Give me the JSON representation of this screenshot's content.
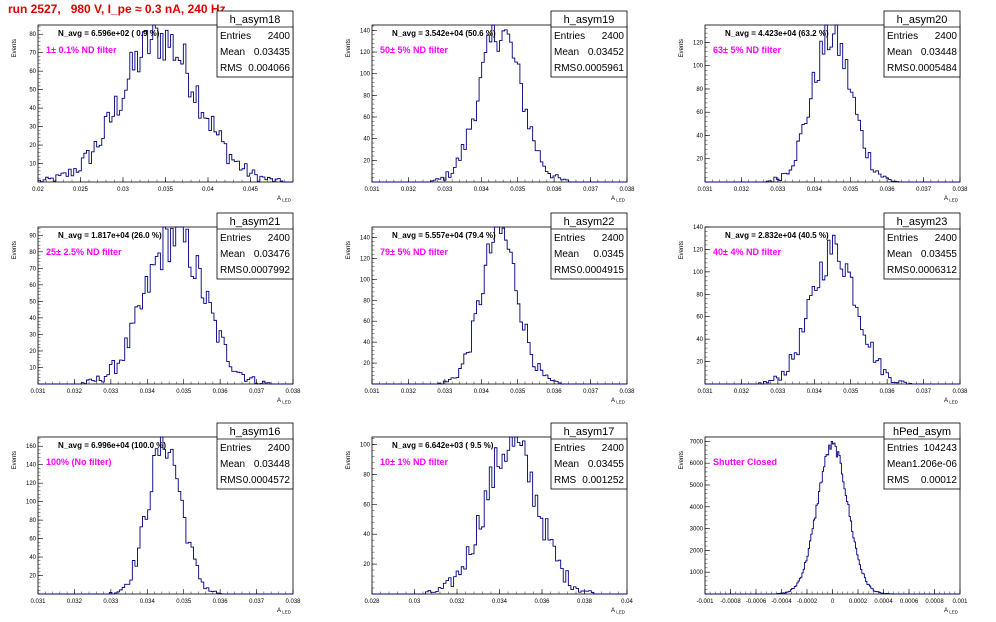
{
  "page_title": "run 2527,   980 V, I_pe ≈ 0.3 nA, 240 Hz",
  "ylabel": "Events",
  "xlabel": "A",
  "xlabel_sub": "LED",
  "stat_keys": {
    "entries": "Entries",
    "mean": "Mean",
    "rms": "RMS"
  },
  "colors": {
    "title": "#e00000",
    "filter": "#ff00ff",
    "hist": "#000080",
    "axis": "#000000"
  },
  "chart_data": [
    {
      "type": "histogram",
      "name": "h_asym18",
      "annotation": "N_avg = 6.596e+02 ( 0.9 %)",
      "filter_label": "1± 0.1% ND filter",
      "stats": {
        "entries": "2400",
        "mean": "0.03435",
        "rms": "0.004066"
      },
      "xlim": [
        0.02,
        0.05
      ],
      "ylim": [
        0,
        85
      ],
      "xticks": [
        "0.02",
        "0.025",
        "0.03",
        "0.035",
        "0.04",
        "0.045"
      ],
      "yticks": [
        "10",
        "20",
        "30",
        "40",
        "50",
        "60",
        "70",
        "80"
      ],
      "peak": 78,
      "mean": 0.03435,
      "sigma": 0.0045,
      "bins": 100
    },
    {
      "type": "histogram",
      "name": "h_asym19",
      "annotation": "N_avg = 3.542e+04 (50.6 %)",
      "filter_label": "50± 5% ND filter",
      "stats": {
        "entries": "2400",
        "mean": "0.03452",
        "rms": "0.0005961"
      },
      "xlim": [
        0.031,
        0.038
      ],
      "ylim": [
        0,
        145
      ],
      "xticks": [
        "0.031",
        "0.032",
        "0.033",
        "0.034",
        "0.035",
        "0.036",
        "0.037",
        "0.038"
      ],
      "yticks": [
        "20",
        "40",
        "60",
        "80",
        "100",
        "120",
        "140"
      ],
      "peak": 140,
      "mean": 0.03452,
      "sigma": 0.00058,
      "bins": 100
    },
    {
      "type": "histogram",
      "name": "h_asym20",
      "annotation": "N_avg = 4.423e+04 (63.2 %)",
      "filter_label": "63± 5% ND filter",
      "stats": {
        "entries": "2400",
        "mean": "0.03448",
        "rms": "0.0005484"
      },
      "xlim": [
        0.031,
        0.038
      ],
      "ylim": [
        0,
        135
      ],
      "xticks": [
        "0.031",
        "0.032",
        "0.033",
        "0.034",
        "0.035",
        "0.036",
        "0.037",
        "0.038"
      ],
      "yticks": [
        "20",
        "40",
        "60",
        "80",
        "100",
        "120"
      ],
      "peak": 125,
      "mean": 0.03448,
      "sigma": 0.00055,
      "bins": 100
    },
    {
      "type": "histogram",
      "name": "h_asym21",
      "annotation": "N_avg = 1.817e+04 (26.0 %)",
      "filter_label": "25± 2.5% ND filter",
      "stats": {
        "entries": "2400",
        "mean": "0.03476",
        "rms": "0.0007992"
      },
      "xlim": [
        0.031,
        0.038
      ],
      "ylim": [
        0,
        95
      ],
      "xticks": [
        "0.031",
        "0.032",
        "0.033",
        "0.034",
        "0.035",
        "0.036",
        "0.037",
        "0.038"
      ],
      "yticks": [
        "10",
        "20",
        "30",
        "40",
        "50",
        "60",
        "70",
        "80",
        "90"
      ],
      "peak": 90,
      "mean": 0.03476,
      "sigma": 0.0008,
      "bins": 100
    },
    {
      "type": "histogram",
      "name": "h_asym22",
      "annotation": "N_avg = 5.557e+04 (79.4 %)",
      "filter_label": "79± 5% ND filter",
      "stats": {
        "entries": "2400",
        "mean": "0.0345",
        "rms": "0.0004915"
      },
      "xlim": [
        0.031,
        0.038
      ],
      "ylim": [
        0,
        150
      ],
      "xticks": [
        "0.031",
        "0.032",
        "0.033",
        "0.034",
        "0.035",
        "0.036",
        "0.037",
        "0.038"
      ],
      "yticks": [
        "20",
        "40",
        "60",
        "80",
        "100",
        "120",
        "140"
      ],
      "peak": 145,
      "mean": 0.0345,
      "sigma": 0.0005,
      "bins": 100
    },
    {
      "type": "histogram",
      "name": "h_asym23",
      "annotation": "N_avg = 2.832e+04 (40.5 %)",
      "filter_label": "40± 4% ND filter",
      "stats": {
        "entries": "2400",
        "mean": "0.03455",
        "rms": "0.0006312"
      },
      "xlim": [
        0.031,
        0.038
      ],
      "ylim": [
        0,
        140
      ],
      "xticks": [
        "0.031",
        "0.032",
        "0.033",
        "0.034",
        "0.035",
        "0.036",
        "0.037",
        "0.038"
      ],
      "yticks": [
        "20",
        "40",
        "60",
        "80",
        "100",
        "120",
        "140"
      ],
      "peak": 120,
      "mean": 0.03455,
      "sigma": 0.00063,
      "bins": 100
    },
    {
      "type": "histogram",
      "name": "h_asym16",
      "annotation": "N_avg = 6.996e+04 (100.0 %)",
      "filter_label": "100% (No filter)",
      "stats": {
        "entries": "2400",
        "mean": "0.03448",
        "rms": "0.0004572"
      },
      "xlim": [
        0.031,
        0.038
      ],
      "ylim": [
        0,
        170
      ],
      "xticks": [
        "0.031",
        "0.032",
        "0.033",
        "0.034",
        "0.035",
        "0.036",
        "0.037",
        "0.038"
      ],
      "yticks": [
        "20",
        "40",
        "60",
        "80",
        "100",
        "120",
        "140",
        "160"
      ],
      "peak": 165,
      "mean": 0.03448,
      "sigma": 0.00046,
      "bins": 100
    },
    {
      "type": "histogram",
      "name": "h_asym17",
      "annotation": "N_avg = 6.642e+03 ( 9.5 %)",
      "filter_label": "10± 1% ND filter",
      "stats": {
        "entries": "2400",
        "mean": "0.03455",
        "rms": "0.001252"
      },
      "xlim": [
        0.028,
        0.04
      ],
      "ylim": [
        0,
        105
      ],
      "xticks": [
        "0.028",
        "0.03",
        "0.032",
        "0.034",
        "0.036",
        "0.038",
        "0.04"
      ],
      "yticks": [
        "20",
        "40",
        "60",
        "80",
        "100"
      ],
      "peak": 100,
      "mean": 0.03455,
      "sigma": 0.00125,
      "bins": 100
    },
    {
      "type": "histogram",
      "name": "hPed_asym",
      "annotation": "",
      "filter_label": "Shutter Closed",
      "stats": {
        "entries": "104243",
        "mean": "1.206e-06",
        "rms": "0.00012"
      },
      "xlim": [
        -0.001,
        0.001
      ],
      "ylim": [
        0,
        7200
      ],
      "xticks": [
        "-0.001",
        "-0.0008",
        "-0.0006",
        "-0.0004",
        "-0.0002",
        "0",
        "0.0002",
        "0.0004",
        "0.0006",
        "0.0008",
        "0.001"
      ],
      "yticks": [
        "1000",
        "2000",
        "3000",
        "4000",
        "5000",
        "6000",
        "7000"
      ],
      "peak": 6800,
      "mean": 0.0,
      "sigma": 0.00012,
      "bins": 200
    }
  ]
}
